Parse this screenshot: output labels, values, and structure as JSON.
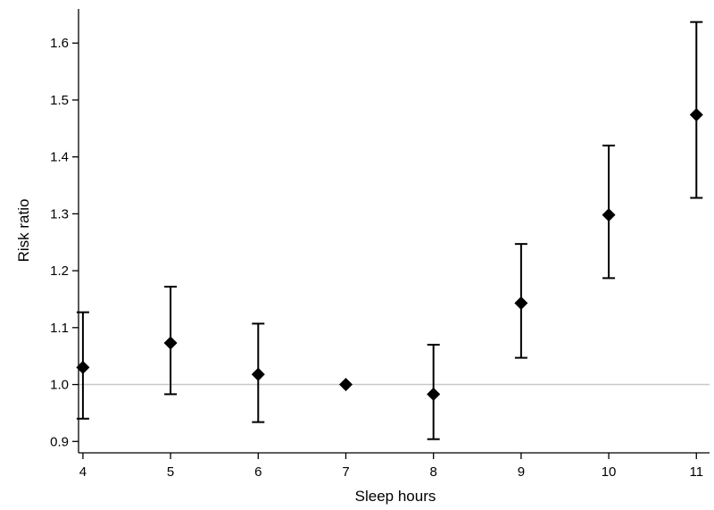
{
  "chart_data": {
    "type": "scatter",
    "title": "",
    "xlabel": "Sleep hours",
    "ylabel": "Risk ratio",
    "x_ticks": [
      4,
      5,
      6,
      7,
      8,
      9,
      10,
      11
    ],
    "y_ticks": [
      0.9,
      1.0,
      1.1,
      1.2,
      1.3,
      1.4,
      1.5,
      1.6
    ],
    "y_tick_labels": [
      "0.9",
      "1.0",
      "1.1",
      "1.2",
      "1.3",
      "1.4",
      "1.5",
      "1.6"
    ],
    "xlim": [
      3.95,
      11.15
    ],
    "ylim": [
      0.88,
      1.66
    ],
    "reference_line": 1.0,
    "grid": false,
    "marker": "diamond",
    "colors": {
      "marker": "#000000",
      "reference_line": "#c8c8c8",
      "axis": "#000000"
    },
    "points": [
      {
        "x": 4,
        "y": 1.03,
        "lower": 0.94,
        "upper": 1.127
      },
      {
        "x": 5,
        "y": 1.073,
        "lower": 0.983,
        "upper": 1.172
      },
      {
        "x": 6,
        "y": 1.018,
        "lower": 0.934,
        "upper": 1.107
      },
      {
        "x": 7,
        "y": 1.0,
        "lower": null,
        "upper": null
      },
      {
        "x": 8,
        "y": 0.983,
        "lower": 0.904,
        "upper": 1.07
      },
      {
        "x": 9,
        "y": 1.143,
        "lower": 1.047,
        "upper": 1.247
      },
      {
        "x": 10,
        "y": 1.298,
        "lower": 1.187,
        "upper": 1.42
      },
      {
        "x": 11,
        "y": 1.474,
        "lower": 1.328,
        "upper": 1.637
      }
    ]
  }
}
